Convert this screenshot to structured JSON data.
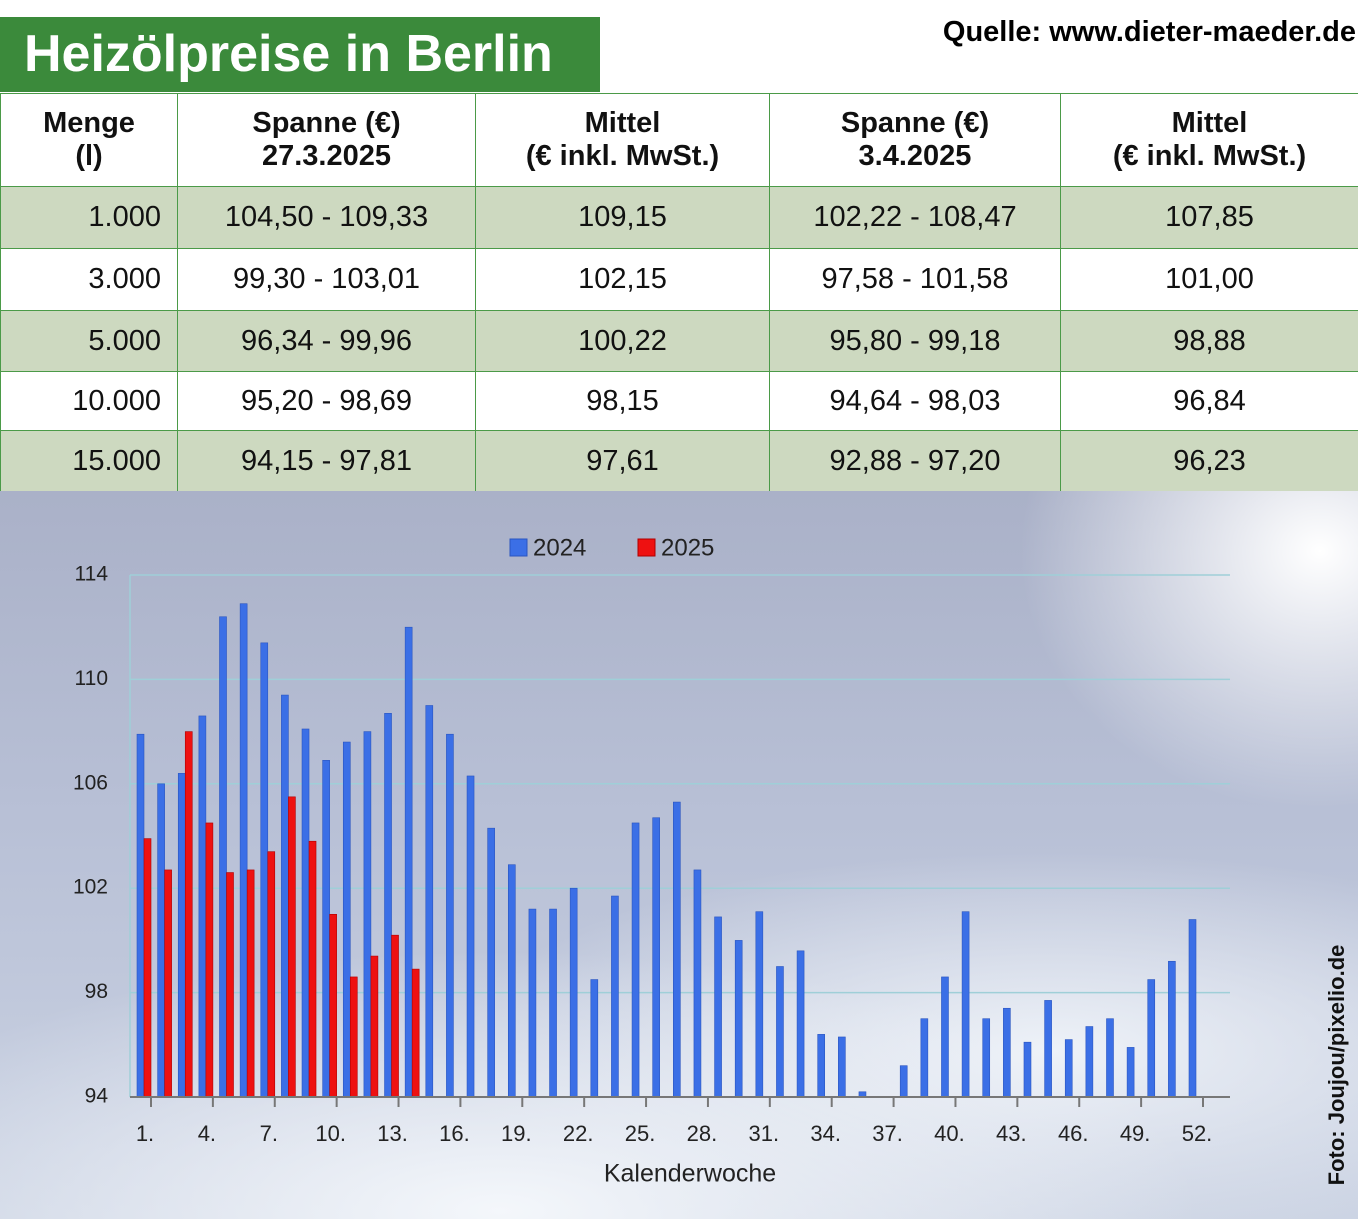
{
  "title": "Heizölpreise in Berlin",
  "source": "Quelle: www.dieter-maeder.de",
  "credit": "Foto: Joujou/pixelio.de",
  "table": {
    "header": [
      [
        "Menge",
        "(l)"
      ],
      [
        "Spanne (€)",
        "27.3.2025"
      ],
      [
        "Mittel",
        "(€ inkl. MwSt.)"
      ],
      [
        "Spanne (€)",
        "3.4.2025"
      ],
      [
        "Mittel",
        "(€ inkl. MwSt.)"
      ]
    ],
    "rows": [
      [
        "1.000",
        "104,50 - 109,33",
        "109,15",
        "102,22 - 108,47",
        "107,85"
      ],
      [
        "3.000",
        "99,30 - 103,01",
        "102,15",
        "97,58 - 101,58",
        "101,00"
      ],
      [
        "5.000",
        "96,34 - 99,96",
        "100,22",
        "95,80 - 99,18",
        "98,88"
      ],
      [
        "10.000",
        "95,20 - 98,69",
        "98,15",
        "94,64 - 98,03",
        "96,84"
      ],
      [
        "15.000",
        "94,15 - 97,81",
        "97,61",
        "92,88 - 97,20",
        "96,23"
      ]
    ]
  },
  "chart_data": {
    "type": "bar",
    "x_label": "Kalenderwoche",
    "categories": [
      "1.",
      null,
      null,
      "4.",
      null,
      null,
      "7.",
      null,
      null,
      "10.",
      null,
      null,
      "13.",
      null,
      null,
      "16.",
      null,
      null,
      "19.",
      null,
      null,
      "22.",
      null,
      null,
      "25.",
      null,
      null,
      "28.",
      null,
      null,
      "31.",
      null,
      null,
      "34.",
      null,
      null,
      "37.",
      null,
      null,
      "40.",
      null,
      null,
      "43.",
      null,
      null,
      "46.",
      null,
      null,
      "49.",
      null,
      null,
      "52."
    ],
    "series": [
      {
        "name": "2024",
        "color": "#3b6fe6",
        "values": [
          107.9,
          106.0,
          106.4,
          108.6,
          112.4,
          112.9,
          111.4,
          109.4,
          108.1,
          106.9,
          107.6,
          108.0,
          108.7,
          112.0,
          109.0,
          107.9,
          106.3,
          104.3,
          102.9,
          101.2,
          101.2,
          102.0,
          98.5,
          101.7,
          104.5,
          104.7,
          105.3,
          102.7,
          100.9,
          100.0,
          101.1,
          99.0,
          99.6,
          96.4,
          96.3,
          94.2,
          null,
          95.2,
          97.0,
          98.6,
          101.1,
          97.0,
          97.4,
          96.1,
          97.7,
          96.2,
          96.7,
          97.0,
          95.9,
          98.5,
          99.2,
          100.8
        ]
      },
      {
        "name": "2025",
        "color": "#ee1111",
        "values": [
          103.9,
          102.7,
          108.0,
          104.5,
          102.6,
          102.7,
          103.4,
          105.5,
          103.8,
          101.0,
          98.6,
          99.4,
          100.2,
          98.9,
          null,
          null,
          null,
          null,
          null,
          null,
          null,
          null,
          null,
          null,
          null,
          null,
          null,
          null,
          null,
          null,
          null,
          null,
          null,
          null,
          null,
          null,
          null,
          null,
          null,
          null,
          null,
          null,
          null,
          null,
          null,
          null,
          null,
          null,
          null,
          null,
          null,
          null
        ]
      }
    ],
    "ylim": [
      94,
      114
    ],
    "yticks": [
      94,
      98,
      102,
      106,
      110,
      114
    ],
    "grid": true,
    "legend": "top"
  }
}
